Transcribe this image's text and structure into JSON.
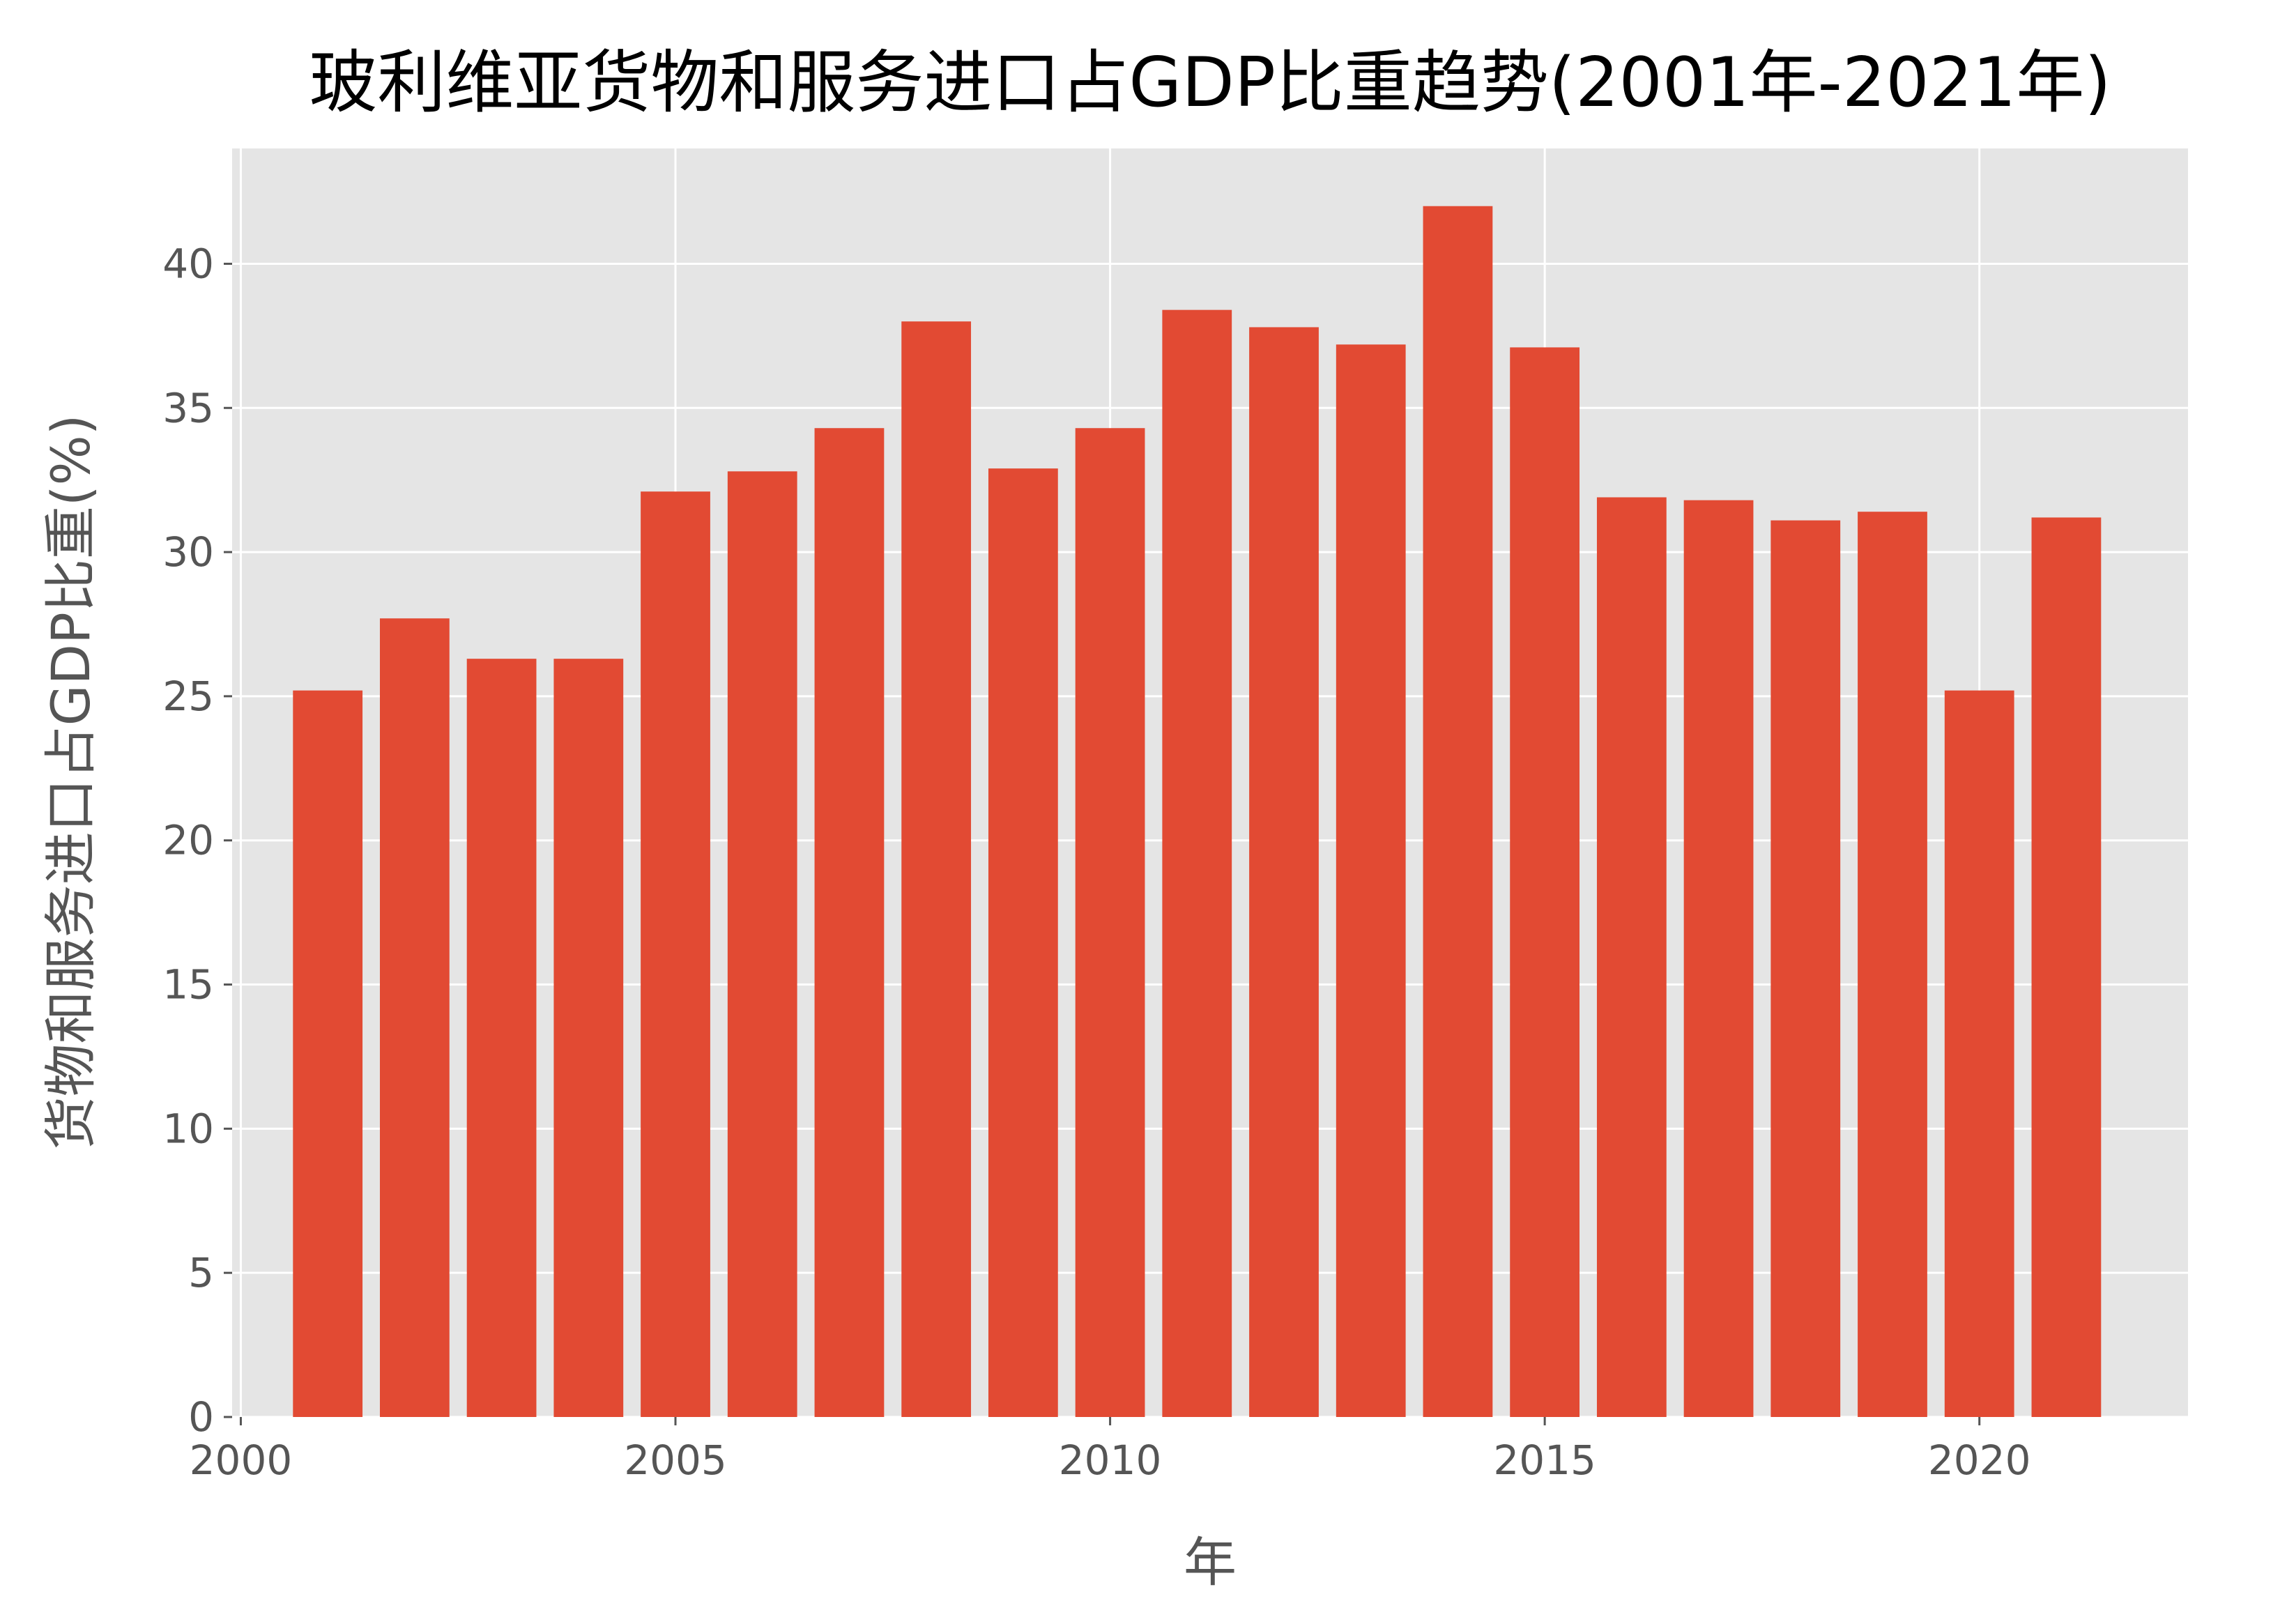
{
  "chart_data": {
    "type": "bar",
    "title": "玻利维亚货物和服务进口占GDP比重趋势(2001年-2021年)",
    "xlabel": "年",
    "ylabel": "货物和服务进口占GDP比重(%)",
    "x": [
      2001,
      2002,
      2003,
      2004,
      2005,
      2006,
      2007,
      2008,
      2009,
      2010,
      2011,
      2012,
      2013,
      2014,
      2015,
      2016,
      2017,
      2018,
      2019,
      2020,
      2021
    ],
    "values": [
      25.2,
      27.7,
      26.3,
      26.3,
      32.1,
      32.8,
      34.3,
      38.0,
      32.9,
      34.3,
      38.4,
      37.8,
      37.2,
      42.0,
      37.1,
      31.9,
      31.8,
      31.1,
      31.4,
      25.2,
      31.2
    ],
    "xlim": [
      1999.9,
      2022.4
    ],
    "ylim": [
      0,
      44
    ],
    "xticks": [
      2000,
      2005,
      2010,
      2015,
      2020
    ],
    "yticks": [
      0,
      5,
      10,
      15,
      20,
      25,
      30,
      35,
      40
    ],
    "grid": true,
    "colors": {
      "bar": "#E24A33",
      "plot_background": "#E5E5E5",
      "grid": "#FFFFFF",
      "tick_text": "#555555",
      "title_text": "#000000"
    }
  }
}
